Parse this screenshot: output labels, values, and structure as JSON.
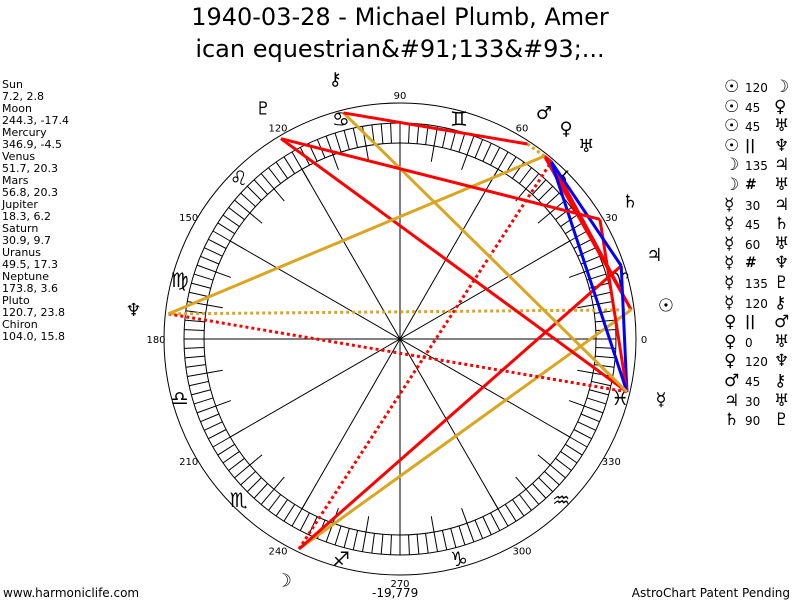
{
  "title": {
    "line1": "1940-03-28 - Michael Plumb, Amer",
    "line2": "ican equestrian&#91;133&#93;..."
  },
  "planets": [
    {
      "name": "Sun",
      "glyph": "☉",
      "lon": 7.2,
      "coords": "7.2, 2.8"
    },
    {
      "name": "Moon",
      "glyph": "☽",
      "lon": 244.3,
      "coords": "244.3, -17.4"
    },
    {
      "name": "Mercury",
      "glyph": "☿",
      "lon": 346.9,
      "coords": "346.9, -4.5"
    },
    {
      "name": "Venus",
      "glyph": "♀",
      "lon": 51.7,
      "coords": "51.7, 20.3"
    },
    {
      "name": "Mars",
      "glyph": "♂",
      "lon": 56.8,
      "coords": "56.8, 20.3"
    },
    {
      "name": "Jupiter",
      "glyph": "♃",
      "lon": 18.3,
      "coords": "18.3, 6.2"
    },
    {
      "name": "Saturn",
      "glyph": "♄",
      "lon": 30.9,
      "coords": "30.9, 9.7"
    },
    {
      "name": "Uranus",
      "glyph": "♅",
      "lon": 49.5,
      "coords": "49.5, 17.3"
    },
    {
      "name": "Neptune",
      "glyph": "♆",
      "lon": 173.8,
      "coords": "173.8, 3.6"
    },
    {
      "name": "Pluto",
      "glyph": "♇",
      "lon": 120.7,
      "coords": "120.7, 23.8"
    },
    {
      "name": "Chiron",
      "glyph": "⚷",
      "lon": 104.0,
      "coords": "104.0, 15.8"
    }
  ],
  "aspects": [
    {
      "p1": "Sun",
      "aspect": "120",
      "p2": "Moon",
      "style": "trine"
    },
    {
      "p1": "Sun",
      "aspect": "45",
      "p2": "Venus",
      "style": "hard"
    },
    {
      "p1": "Sun",
      "aspect": "45",
      "p2": "Uranus",
      "style": "hard"
    },
    {
      "p1": "Sun",
      "aspect": "||",
      "p2": "Neptune",
      "style": "parallel"
    },
    {
      "p1": "Moon",
      "aspect": "135",
      "p2": "Jupiter",
      "style": "hard"
    },
    {
      "p1": "Moon",
      "aspect": "#",
      "p2": "Uranus",
      "style": "contraparallel"
    },
    {
      "p1": "Mercury",
      "aspect": "30",
      "p2": "Jupiter",
      "style": "soft"
    },
    {
      "p1": "Mercury",
      "aspect": "45",
      "p2": "Saturn",
      "style": "hard"
    },
    {
      "p1": "Mercury",
      "aspect": "60",
      "p2": "Uranus",
      "style": "soft"
    },
    {
      "p1": "Mercury",
      "aspect": "#",
      "p2": "Neptune",
      "style": "contraparallel"
    },
    {
      "p1": "Mercury",
      "aspect": "135",
      "p2": "Pluto",
      "style": "hard"
    },
    {
      "p1": "Mercury",
      "aspect": "120",
      "p2": "Chiron",
      "style": "trine"
    },
    {
      "p1": "Venus",
      "aspect": "||",
      "p2": "Mars",
      "style": "parallel"
    },
    {
      "p1": "Venus",
      "aspect": "0",
      "p2": "Uranus",
      "style": "hard"
    },
    {
      "p1": "Venus",
      "aspect": "120",
      "p2": "Neptune",
      "style": "trine"
    },
    {
      "p1": "Mars",
      "aspect": "45",
      "p2": "Chiron",
      "style": "hard"
    },
    {
      "p1": "Jupiter",
      "aspect": "30",
      "p2": "Uranus",
      "style": "soft"
    },
    {
      "p1": "Saturn",
      "aspect": "90",
      "p2": "Pluto",
      "style": "hard"
    }
  ],
  "aspect_colors": {
    "hard": "#ff0000",
    "soft": "#0000ff",
    "trine": "#daa520",
    "parallel": "#daa520",
    "contraparallel": "#ff0000"
  },
  "zodiac": [
    "♈",
    "♉",
    "♊",
    "♋",
    "♌",
    "♍",
    "♎",
    "♏",
    "♐",
    "♑",
    "♒",
    "♓"
  ],
  "degree_labels": [
    "0",
    "30",
    "60",
    "90",
    "120",
    "150",
    "180",
    "210",
    "240",
    "270",
    "300",
    "330"
  ],
  "footer": {
    "site": "www.harmoniclife.com",
    "value": "-19,779",
    "patent": "AstroChart Patent Pending"
  }
}
